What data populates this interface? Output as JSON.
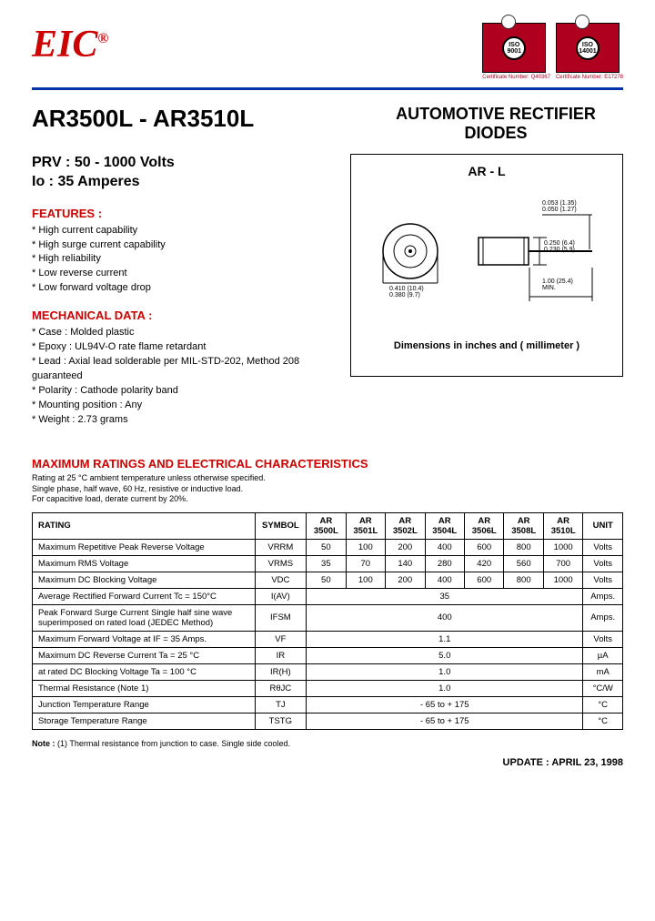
{
  "logo": "EIC",
  "certs": [
    {
      "iso": "ISO 9001",
      "num": "Certificate Number: Q40367"
    },
    {
      "iso": "ISO 14001",
      "num": "Certificate Number: E17278"
    }
  ],
  "part_number": "AR3500L - AR3510L",
  "product_title": "AUTOMOTIVE RECTIFIER DIODES",
  "prv": "PRV : 50 - 1000 Volts",
  "io": "Io : 35 Amperes",
  "features_head": "FEATURES :",
  "features": [
    "High current capability",
    "High surge current capability",
    "High reliability",
    "Low reverse current",
    "Low forward voltage drop"
  ],
  "mech_head": "MECHANICAL  DATA :",
  "mechanical": [
    "Case : Molded plastic",
    "Epoxy : UL94V-O rate flame retardant",
    "Lead : Axial lead solderable per MIL-STD-202, Method 208 guaranteed",
    "Polarity : Cathode polarity band",
    "Mounting  position : Any",
    "Weight :   2.73 grams"
  ],
  "diagram": {
    "title": "AR - L",
    "note": "Dimensions in inches and ( millimeter )",
    "dims": {
      "lead_dia": "0.053 (1.35)\n0.050 (1.27)",
      "height": "0.250 (6.4)\n0.230 (5.9)",
      "body_dia": "0.410 (10.4)\n0.380 (9.7)",
      "lead_len": "1.00 (25.4)\nMIN."
    }
  },
  "ratings_head": "MAXIMUM RATINGS AND ELECTRICAL CHARACTERISTICS",
  "ratings_note": "Rating at 25 °C ambient temperature unless otherwise specified.\nSingle phase, half wave, 60 Hz, resistive or inductive load.\nFor capacitive load, derate current by 20%.",
  "table": {
    "head": [
      "RATING",
      "SYMBOL",
      "AR 3500L",
      "AR 3501L",
      "AR 3502L",
      "AR 3504L",
      "AR 3506L",
      "AR 3508L",
      "AR 3510L",
      "UNIT"
    ],
    "rows": [
      {
        "rating": "Maximum Repetitive Peak Reverse Voltage",
        "sym": "VRRM",
        "vals": [
          "50",
          "100",
          "200",
          "400",
          "600",
          "800",
          "1000"
        ],
        "unit": "Volts"
      },
      {
        "rating": "Maximum RMS Voltage",
        "sym": "VRMS",
        "vals": [
          "35",
          "70",
          "140",
          "280",
          "420",
          "560",
          "700"
        ],
        "unit": "Volts"
      },
      {
        "rating": "Maximum DC Blocking Voltage",
        "sym": "VDC",
        "vals": [
          "50",
          "100",
          "200",
          "400",
          "600",
          "800",
          "1000"
        ],
        "unit": "Volts"
      },
      {
        "rating": "Average Rectified Forward Current  Tc = 150°C",
        "sym": "I(AV)",
        "span": "35",
        "unit": "Amps."
      },
      {
        "rating": "Peak Forward Surge Current Single half sine wave superimposed on rated load (JEDEC Method)",
        "sym": "IFSM",
        "span": "400",
        "unit": "Amps."
      },
      {
        "rating": "Maximum Forward Voltage at IF = 35 Amps.",
        "sym": "VF",
        "span": "1.1",
        "unit": "Volts"
      },
      {
        "rating": "Maximum DC Reverse Current     Ta = 25 °C",
        "sym": "IR",
        "span": "5.0",
        "unit": "µA"
      },
      {
        "rating": "at rated DC Blocking Voltage      Ta = 100 °C",
        "sym": "IR(H)",
        "span": "1.0",
        "unit": "mA"
      },
      {
        "rating": "Thermal Resistance (Note 1)",
        "sym": "RθJC",
        "span": "1.0",
        "unit": "°C/W"
      },
      {
        "rating": "Junction Temperature Range",
        "sym": "TJ",
        "span": "- 65 to + 175",
        "unit": "°C"
      },
      {
        "rating": "Storage Temperature Range",
        "sym": "TSTG",
        "span": "- 65 to + 175",
        "unit": "°C"
      }
    ]
  },
  "footnote": "Note : (1) Thermal resistance from junction to case. Single side cooled.",
  "update": "UPDATE : APRIL 23, 1998",
  "colors": {
    "brand": "#c00",
    "rule": "#0033aa",
    "cert_bg": "#b00020"
  }
}
